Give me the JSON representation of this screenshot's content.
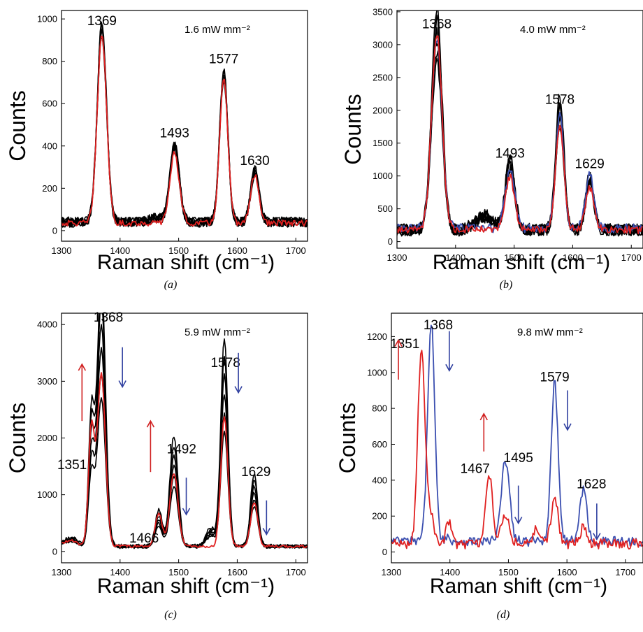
{
  "chart_data": [
    {
      "type": "line",
      "panel_label": "(a)",
      "annotation": "1.6 mW mm⁻²",
      "xlabel": "Raman shift (cm⁻¹)",
      "ylabel": "Counts",
      "xlim": [
        1300,
        1720
      ],
      "ylim": [
        -50,
        1040
      ],
      "xticks": [
        1300,
        1400,
        1500,
        1600,
        1700
      ],
      "yticks": [
        0,
        200,
        400,
        600,
        800,
        1000
      ],
      "peak_labels": [
        {
          "text": "1369",
          "x": 1369,
          "y": 970
        },
        {
          "text": "1493",
          "x": 1493,
          "y": 440
        },
        {
          "text": "1577",
          "x": 1577,
          "y": 790
        },
        {
          "text": "1630",
          "x": 1630,
          "y": 310
        }
      ],
      "arrows": [],
      "series": [
        {
          "color": "#000000",
          "kind": "band",
          "baseline": 40,
          "noise": 24,
          "band": 28,
          "peaks": [
            [
              1369,
              910,
              8
            ],
            [
              1493,
              360,
              8
            ],
            [
              1577,
              700,
              7
            ],
            [
              1630,
              240,
              7
            ],
            [
              1460,
              20,
              10
            ]
          ]
        },
        {
          "color": "#e02020",
          "kind": "line",
          "baseline": 35,
          "noise": 14,
          "peaks": [
            [
              1369,
              890,
              8
            ],
            [
              1493,
              330,
              8
            ],
            [
              1577,
              680,
              7
            ],
            [
              1630,
              230,
              7
            ]
          ]
        }
      ]
    },
    {
      "type": "line",
      "panel_label": "(b)",
      "annotation": "4.0 mW mm⁻²",
      "xlabel": "Raman shift (cm⁻¹)",
      "ylabel": "Counts",
      "xlim": [
        1300,
        1720
      ],
      "ylim": [
        -100,
        3520
      ],
      "xticks": [
        1300,
        1400,
        1500,
        1600,
        1700
      ],
      "yticks": [
        0,
        500,
        1000,
        1500,
        2000,
        2500,
        3000,
        3500
      ],
      "peak_labels": [
        {
          "text": "1368",
          "x": 1368,
          "y": 3250
        },
        {
          "text": "1493",
          "x": 1493,
          "y": 1280
        },
        {
          "text": "1578",
          "x": 1578,
          "y": 2100
        },
        {
          "text": "1629",
          "x": 1629,
          "y": 1120
        }
      ],
      "arrows": [],
      "series": [
        {
          "color": "#000000",
          "kind": "band",
          "baseline": 180,
          "noise": 90,
          "band": 120,
          "peaks": [
            [
              1368,
              2950,
              9
            ],
            [
              1493,
              1000,
              8
            ],
            [
              1578,
              1800,
              7
            ],
            [
              1629,
              750,
              7
            ],
            [
              1450,
              200,
              15
            ]
          ]
        },
        {
          "color": "#3b4fb0",
          "kind": "line",
          "baseline": 200,
          "noise": 70,
          "peaks": [
            [
              1368,
              2900,
              9
            ],
            [
              1493,
              900,
              8
            ],
            [
              1578,
              1700,
              7
            ],
            [
              1629,
              850,
              7
            ]
          ]
        },
        {
          "color": "#e02020",
          "kind": "line",
          "baseline": 180,
          "noise": 60,
          "peaks": [
            [
              1368,
              2980,
              9
            ],
            [
              1493,
              800,
              8
            ],
            [
              1578,
              1600,
              7
            ],
            [
              1629,
              650,
              7
            ]
          ]
        }
      ]
    },
    {
      "type": "line",
      "panel_label": "(c)",
      "annotation": "5.9 mW mm⁻²",
      "xlabel": "Raman shift (cm⁻¹)",
      "ylabel": "Counts",
      "xlim": [
        1300,
        1720
      ],
      "ylim": [
        -200,
        4200
      ],
      "xticks": [
        1300,
        1400,
        1500,
        1600,
        1700
      ],
      "yticks": [
        0,
        1000,
        2000,
        3000,
        4000
      ],
      "peak_labels": [
        {
          "text": "1368",
          "x": 1380,
          "y": 4050
        },
        {
          "text": "1351",
          "x": 1318,
          "y": 1450
        },
        {
          "text": "1466",
          "x": 1441,
          "y": 160
        },
        {
          "text": "1492",
          "x": 1505,
          "y": 1730
        },
        {
          "text": "1578",
          "x": 1580,
          "y": 3250
        },
        {
          "text": "1629",
          "x": 1632,
          "y": 1330
        }
      ],
      "arrows": [
        {
          "color": "#d02020",
          "x": 1335,
          "y_from": 2300,
          "y_to": 3300
        },
        {
          "color": "#3040a0",
          "x": 1404,
          "y_from": 3600,
          "y_to": 2900
        },
        {
          "color": "#d02020",
          "x": 1452,
          "y_from": 1400,
          "y_to": 2300
        },
        {
          "color": "#3040a0",
          "x": 1513,
          "y_from": 1300,
          "y_to": 650
        },
        {
          "color": "#3040a0",
          "x": 1602,
          "y_from": 3500,
          "y_to": 2800
        },
        {
          "color": "#3040a0",
          "x": 1650,
          "y_from": 900,
          "y_to": 300
        }
      ],
      "series": [
        {
          "color": "#000000",
          "kind": "band",
          "baseline": 90,
          "noise": 30,
          "band": 260,
          "peaks": [
            [
              1351,
              1800,
              5
            ],
            [
              1368,
              3700,
              7
            ],
            [
              1466,
              500,
              6
            ],
            [
              1492,
              1500,
              7
            ],
            [
              1578,
              2850,
              6
            ],
            [
              1629,
              1000,
              6
            ],
            [
              1315,
              120,
              12
            ],
            [
              1555,
              250,
              8
            ]
          ]
        },
        {
          "color": "#e02020",
          "kind": "line",
          "baseline": 90,
          "noise": 25,
          "peaks": [
            [
              1351,
              2050,
              5
            ],
            [
              1368,
              3050,
              7
            ],
            [
              1466,
              580,
              6
            ],
            [
              1492,
              1300,
              7
            ],
            [
              1578,
              2300,
              6
            ],
            [
              1629,
              780,
              6
            ],
            [
              1315,
              100,
              12
            ]
          ]
        }
      ]
    },
    {
      "type": "line",
      "panel_label": "(d)",
      "annotation": "9.8 mW mm⁻²",
      "xlabel": "Raman shift (cm⁻¹)",
      "ylabel": "Counts",
      "xlim": [
        1300,
        1730
      ],
      "ylim": [
        -60,
        1330
      ],
      "xticks": [
        1300,
        1400,
        1500,
        1600,
        1700
      ],
      "yticks": [
        0,
        200,
        400,
        600,
        800,
        1000,
        1200
      ],
      "peak_labels": [
        {
          "text": "1351",
          "x": 1323,
          "y": 1135
        },
        {
          "text": "1368",
          "x": 1380,
          "y": 1240
        },
        {
          "text": "1467",
          "x": 1443,
          "y": 440
        },
        {
          "text": "1495",
          "x": 1517,
          "y": 500
        },
        {
          "text": "1579",
          "x": 1579,
          "y": 950
        },
        {
          "text": "1628",
          "x": 1642,
          "y": 355
        }
      ],
      "arrows": [
        {
          "color": "#d02020",
          "x": 1312,
          "y_from": 960,
          "y_to": 1180
        },
        {
          "color": "#3040a0",
          "x": 1399,
          "y_from": 1230,
          "y_to": 1010
        },
        {
          "color": "#d02020",
          "x": 1458,
          "y_from": 560,
          "y_to": 770
        },
        {
          "color": "#3040a0",
          "x": 1517,
          "y_from": 370,
          "y_to": 160
        },
        {
          "color": "#3040a0",
          "x": 1601,
          "y_from": 900,
          "y_to": 680
        },
        {
          "color": "#3040a0",
          "x": 1651,
          "y_from": 270,
          "y_to": 70
        }
      ],
      "series": [
        {
          "color": "#3b4fb0",
          "kind": "line",
          "baseline": 60,
          "noise": 28,
          "peaks": [
            [
              1368,
              1230,
              6
            ],
            [
              1495,
              450,
              7
            ],
            [
              1579,
              880,
              6
            ],
            [
              1628,
              290,
              6
            ],
            [
              1395,
              20,
              6
            ]
          ]
        },
        {
          "color": "#e02020",
          "kind": "line",
          "baseline": 45,
          "noise": 28,
          "peaks": [
            [
              1351,
              1060,
              6
            ],
            [
              1365,
              180,
              7
            ],
            [
              1398,
              120,
              5
            ],
            [
              1467,
              380,
              6
            ],
            [
              1495,
              170,
              7
            ],
            [
              1548,
              100,
              5
            ],
            [
              1579,
              260,
              6
            ],
            [
              1628,
              90,
              6
            ]
          ]
        }
      ]
    }
  ]
}
